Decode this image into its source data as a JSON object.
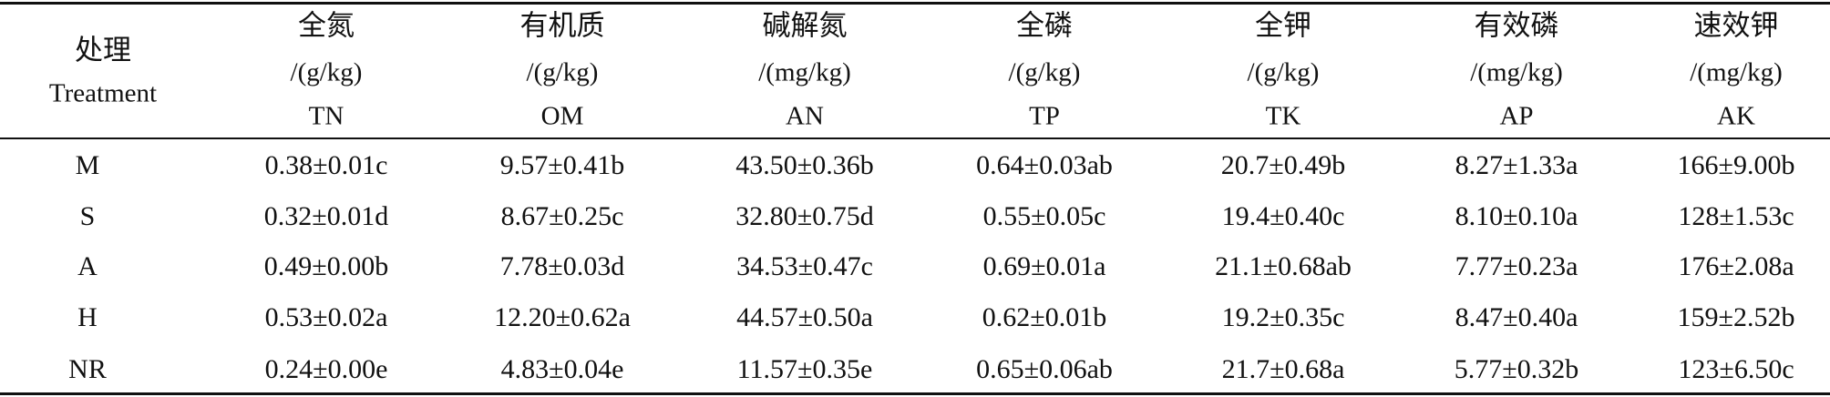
{
  "table": {
    "header": [
      {
        "name": "处理",
        "en": "Treatment"
      },
      {
        "name": "全氮",
        "unit": "/(g/kg)",
        "abbr": "TN"
      },
      {
        "name": "有机质",
        "unit": "/(g/kg)",
        "abbr": "OM"
      },
      {
        "name": "碱解氮",
        "unit": "/(mg/kg)",
        "abbr": "AN"
      },
      {
        "name": "全磷",
        "unit": "/(g/kg)",
        "abbr": "TP"
      },
      {
        "name": "全钾",
        "unit": "/(g/kg)",
        "abbr": "TK"
      },
      {
        "name": "有效磷",
        "unit": "/(mg/kg)",
        "abbr": "AP"
      },
      {
        "name": "速效钾",
        "unit": "/(mg/kg)",
        "abbr": "AK"
      }
    ],
    "rows": [
      [
        "M",
        "0.38±0.01c",
        "9.57±0.41b",
        "43.50±0.36b",
        "0.64±0.03ab",
        "20.7±0.49b",
        "8.27±1.33a",
        "166±9.00b"
      ],
      [
        "S",
        "0.32±0.01d",
        "8.67±0.25c",
        "32.80±0.75d",
        "0.55±0.05c",
        "19.4±0.40c",
        "8.10±0.10a",
        "128±1.53c"
      ],
      [
        "A",
        "0.49±0.00b",
        "7.78±0.03d",
        "34.53±0.47c",
        "0.69±0.01a",
        "21.1±0.68ab",
        "7.77±0.23a",
        "176±2.08a"
      ],
      [
        "H",
        "0.53±0.02a",
        "12.20±0.62a",
        "44.57±0.50a",
        "0.62±0.01b",
        "19.2±0.35c",
        "8.47±0.40a",
        "159±2.52b"
      ],
      [
        "NR",
        "0.24±0.00e",
        "4.83±0.04e",
        "11.57±0.35e",
        "0.65±0.06ab",
        "21.7±0.68a",
        "5.77±0.32b",
        "123±6.50c"
      ]
    ]
  }
}
